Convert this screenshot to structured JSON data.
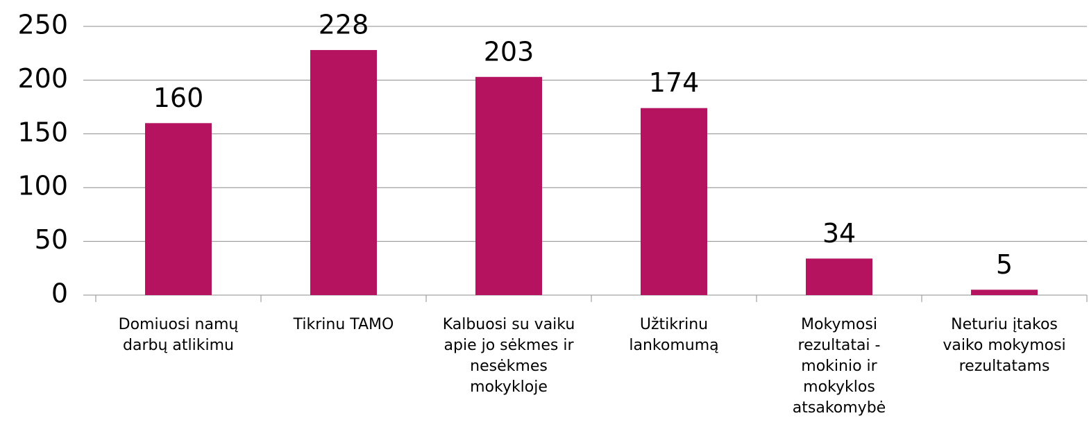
{
  "chart_data": {
    "type": "bar",
    "categories": [
      "Domiuosi namų darbų atlikimu",
      "Tikrinu TAMO",
      "Kalbuosi su vaiku apie jo sėkmes ir nesėkmes mokykloje",
      "Užtikrinu lankomumą",
      "Mokymosi rezultatai - mokinio ir mokyklos atsakomybė",
      "Neturiu įtakos vaiko mokymosi rezultatams"
    ],
    "values": [
      160,
      228,
      203,
      174,
      34,
      5
    ],
    "color": "#b5135f",
    "ylim": [
      0,
      250
    ],
    "yticks": [
      0,
      50,
      100,
      150,
      200,
      250
    ],
    "grid": true
  }
}
